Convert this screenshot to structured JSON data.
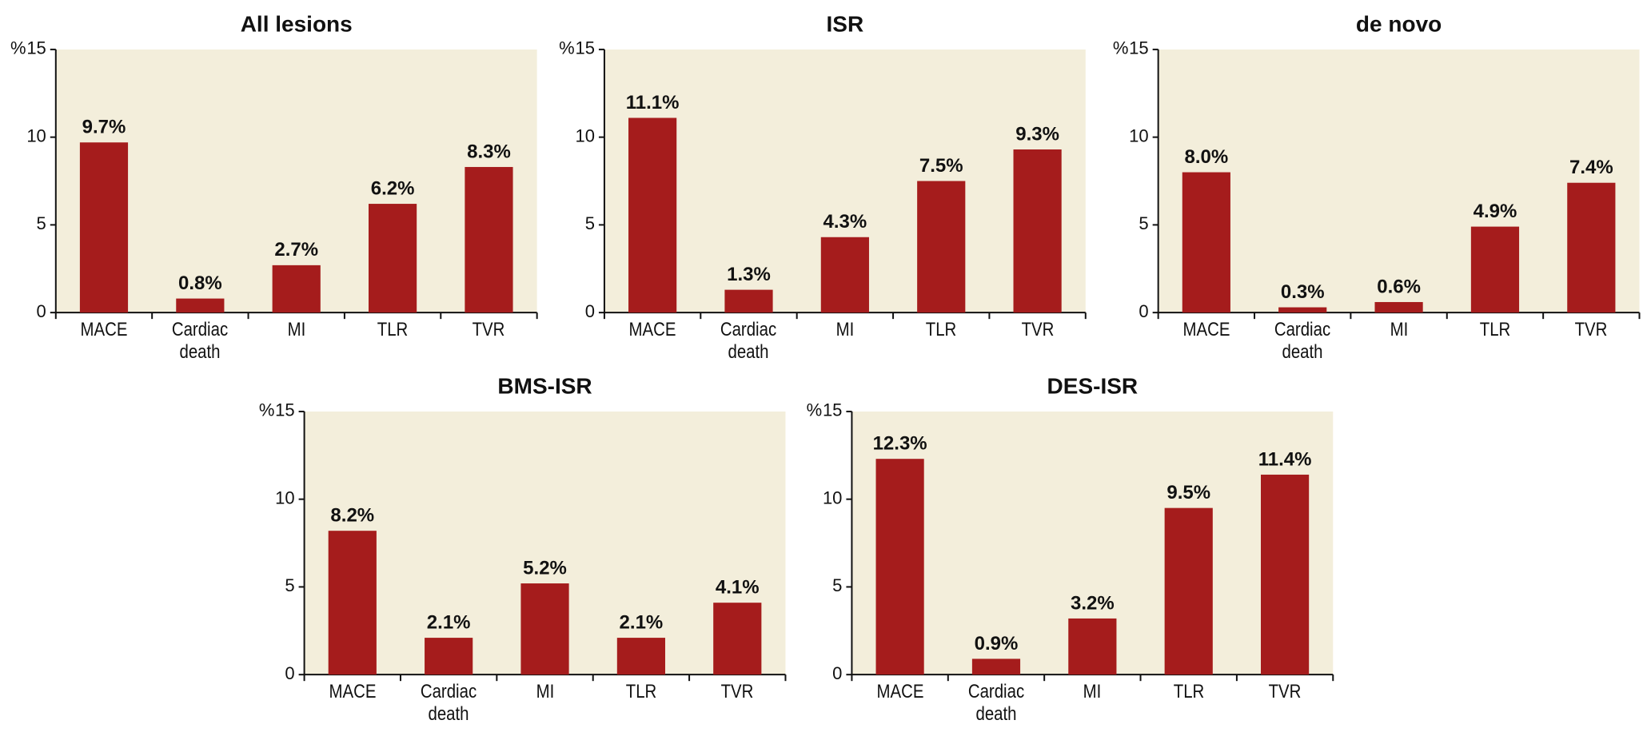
{
  "chart_data": [
    {
      "type": "bar",
      "title": "All lesions",
      "y_label": "%",
      "categories": [
        "MACE",
        "Cardiac death",
        "MI",
        "TLR",
        "TVR"
      ],
      "values": [
        9.7,
        0.8,
        2.7,
        6.2,
        8.3
      ],
      "value_labels": [
        "9.7%",
        "0.8%",
        "2.7%",
        "6.2%",
        "8.3%"
      ],
      "color": "#a51c1c",
      "ylim": [
        0,
        15
      ],
      "yticks": [
        0,
        5,
        10,
        15
      ]
    },
    {
      "type": "bar",
      "title": "ISR",
      "y_label": "%",
      "categories": [
        "MACE",
        "Cardiac death",
        "MI",
        "TLR",
        "TVR"
      ],
      "values": [
        11.1,
        1.3,
        4.3,
        7.5,
        9.3
      ],
      "value_labels": [
        "11.1%",
        "1.3%",
        "4.3%",
        "7.5%",
        "9.3%"
      ],
      "color": "#a51c1c",
      "ylim": [
        0,
        15
      ],
      "yticks": [
        0,
        5,
        10,
        15
      ]
    },
    {
      "type": "bar",
      "title": "de novo",
      "y_label": "%",
      "categories": [
        "MACE",
        "Cardiac death",
        "MI",
        "TLR",
        "TVR"
      ],
      "values": [
        8.0,
        0.3,
        0.6,
        4.9,
        7.4
      ],
      "value_labels": [
        "8.0%",
        "0.3%",
        "0.6%",
        "4.9%",
        "7.4%"
      ],
      "color": "#a51c1c",
      "ylim": [
        0,
        15
      ],
      "yticks": [
        0,
        5,
        10,
        15
      ]
    },
    {
      "type": "bar",
      "title": "BMS-ISR",
      "y_label": "%",
      "categories": [
        "MACE",
        "Cardiac death",
        "MI",
        "TLR",
        "TVR"
      ],
      "values": [
        8.2,
        2.1,
        5.2,
        2.1,
        4.1
      ],
      "value_labels": [
        "8.2%",
        "2.1%",
        "5.2%",
        "2.1%",
        "4.1%"
      ],
      "color": "#a51c1c",
      "ylim": [
        0,
        15
      ],
      "yticks": [
        0,
        5,
        10,
        15
      ]
    },
    {
      "type": "bar",
      "title": "DES-ISR",
      "y_label": "%",
      "categories": [
        "MACE",
        "Cardiac death",
        "MI",
        "TLR",
        "TVR"
      ],
      "values": [
        12.3,
        0.9,
        3.2,
        9.5,
        11.4
      ],
      "value_labels": [
        "12.3%",
        "0.9%",
        "3.2%",
        "9.5%",
        "11.4%"
      ],
      "color": "#a51c1c",
      "ylim": [
        0,
        15
      ],
      "yticks": [
        0,
        5,
        10,
        15
      ]
    }
  ]
}
